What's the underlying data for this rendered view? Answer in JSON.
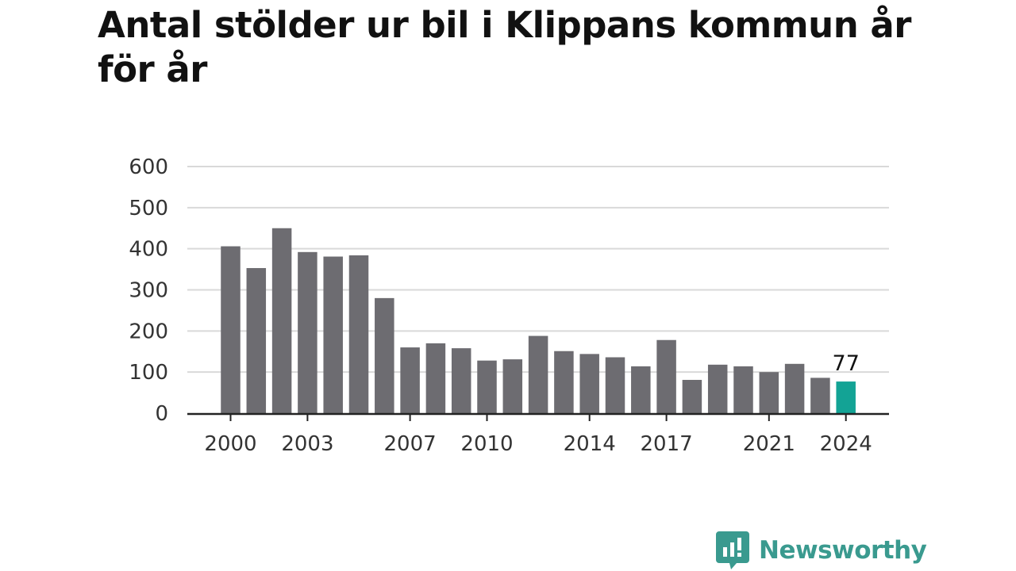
{
  "title": "Antal stölder ur bil i Klippans kommun år för år",
  "colors": {
    "bar": "#6d6c71",
    "highlight": "#13a395",
    "grid": "#d9d9d9",
    "axis": "#222222",
    "brand": "#3a9a8f"
  },
  "brand": {
    "name": "Newsworthy",
    "logo_icon": "newsworthy-chart-bubble-icon"
  },
  "chart_data": {
    "type": "bar",
    "title": "Antal stölder ur bil i Klippans kommun år för år",
    "xlabel": "",
    "ylabel": "",
    "ylim": [
      0,
      600
    ],
    "yticks": [
      0,
      100,
      200,
      300,
      400,
      500,
      600
    ],
    "xtick_labels": [
      "2000",
      "2003",
      "2007",
      "2010",
      "2014",
      "2017",
      "2021",
      "2024"
    ],
    "grid": true,
    "legend": false,
    "categories": [
      "2000",
      "2001",
      "2002",
      "2003",
      "2004",
      "2005",
      "2006",
      "2007",
      "2008",
      "2009",
      "2010",
      "2011",
      "2012",
      "2013",
      "2014",
      "2015",
      "2016",
      "2017",
      "2018",
      "2019",
      "2020",
      "2021",
      "2022",
      "2023",
      "2024"
    ],
    "values": [
      406,
      353,
      450,
      392,
      381,
      384,
      280,
      160,
      170,
      158,
      128,
      131,
      188,
      151,
      144,
      136,
      114,
      178,
      81,
      118,
      114,
      100,
      120,
      86,
      77
    ],
    "highlight_index": 24,
    "annotations": [
      {
        "category": "2024",
        "label": "77"
      }
    ]
  }
}
